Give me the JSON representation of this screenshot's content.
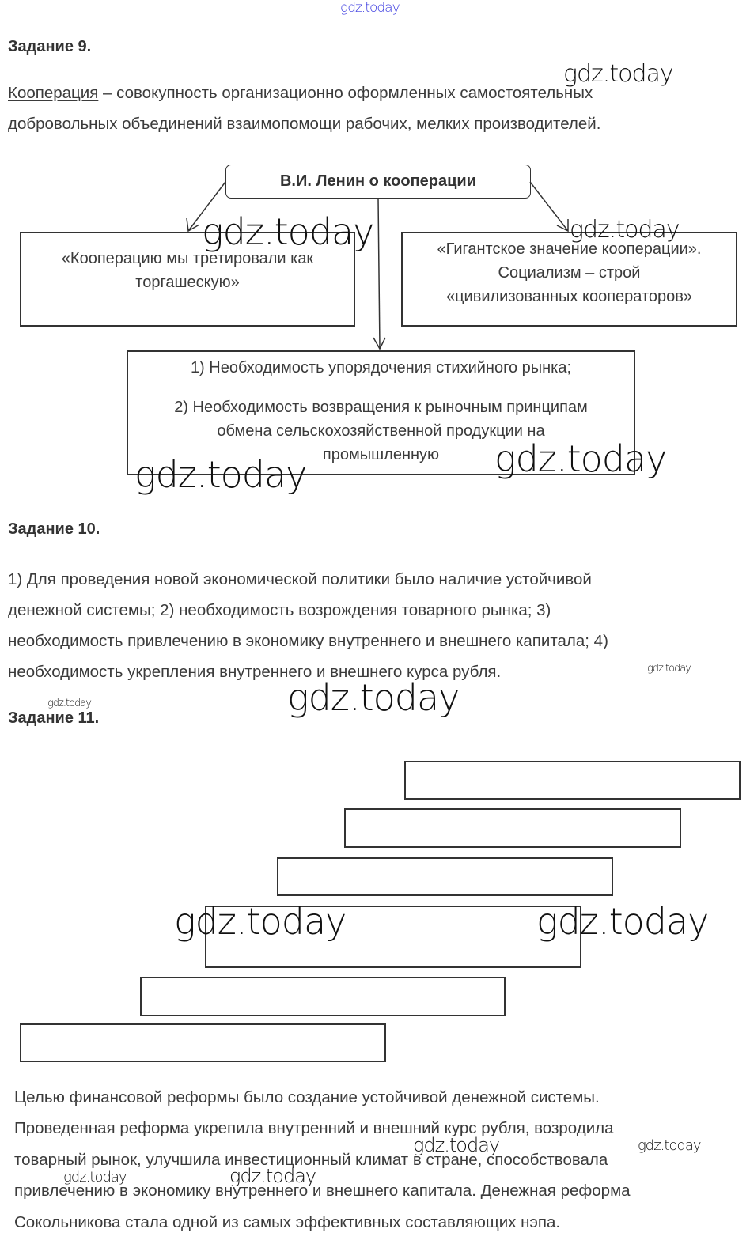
{
  "watermark": "gdz.today",
  "task9": {
    "heading": "Задание 9.",
    "term": "Кооперация",
    "line1_rest": " – совокупность организационно оформленных самостоятельных",
    "line2": "добровольных объединений взаимопомощи рабочих, мелких производителей.",
    "diagram": {
      "title": "В.И. Ленин о кооперации",
      "left_box": [
        "«Кооперацию мы третировали как",
        "торгашескую»"
      ],
      "right_box": [
        "«Гигантское значение кооперации».",
        "Социализм – строй",
        "«цивилизованных кооператоров»"
      ],
      "bottom_box": [
        "1) Необходимость упорядочения стихийного рынка;",
        "2) Необходимость возвращения к рыночным принципам",
        "обмена сельскохозяйственной продукции на",
        "промышленную"
      ]
    }
  },
  "task10": {
    "heading": "Задание 10.",
    "lines": [
      "1) Для проведения новой экономической политики было наличие устойчивой",
      "денежной системы; 2) необходимость возрождения товарного рынка; 3)",
      "необходимость привлечению в экономику внутреннего и внешнего капитала; 4)",
      "необходимость укрепления внутреннего и внешнего курса рубля."
    ]
  },
  "task11": {
    "heading": "Задание 11.",
    "lines": [
      "Целью финансовой реформы было создание устойчивой денежной системы.",
      "Проведенная реформа укрепила внутренний и внешний курс рубля, возродила",
      "товарный рынок, улучшила инвестиционный климат в стране, способствовала",
      "привлечению в экономику внутреннего и внешнего капитала. Денежная реформа",
      "Сокольникова стала одной из самых эффективных составляющих нэпа."
    ]
  }
}
